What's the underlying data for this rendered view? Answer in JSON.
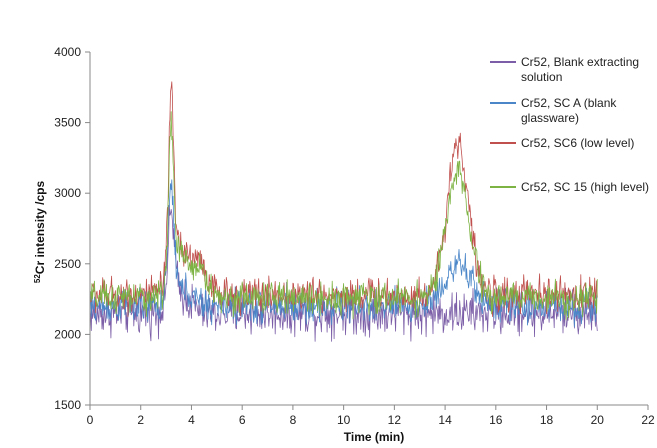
{
  "chart_data": {
    "type": "line",
    "ylabel_sup": "52",
    "ylabel_rest": "Cr intensity /cps",
    "xlabel": "Time (min)",
    "xlim": [
      0,
      22
    ],
    "ylim": [
      1500,
      4000
    ],
    "x_ticks": [
      "0",
      "2",
      "4",
      "6",
      "8",
      "10",
      "12",
      "14",
      "16",
      "18",
      "20",
      "22"
    ],
    "y_ticks": [
      "1500",
      "2000",
      "2500",
      "3000",
      "3500",
      "4000"
    ],
    "x_range": [
      0,
      20
    ],
    "legend_position": "right",
    "grid": false,
    "series": [
      {
        "name": "Cr52, Blank extracting solution",
        "legend_lines": [
          "Cr52, Blank extracting",
          "solution"
        ],
        "color": "#7b5ea7",
        "baseline": 2150,
        "noise": 75,
        "peaks": [
          {
            "x": 3.2,
            "height": 600,
            "width": 0.12
          },
          {
            "x": 3.5,
            "height": 150,
            "width": 0.4
          }
        ]
      },
      {
        "name": "Cr52, SC A (blank glassware)",
        "legend_lines": [
          "Cr52, SC A (blank",
          "glassware)"
        ],
        "color": "#4a86c8",
        "baseline": 2200,
        "noise": 60,
        "peaks": [
          {
            "x": 3.2,
            "height": 780,
            "width": 0.12
          },
          {
            "x": 3.6,
            "height": 120,
            "width": 0.4
          },
          {
            "x": 14.5,
            "height": 280,
            "width": 0.55
          }
        ]
      },
      {
        "name": "Cr52, SC6 (low level)",
        "legend_lines": [
          "Cr52, SC6 (low level)"
        ],
        "color": "#c0504d",
        "baseline": 2280,
        "noise": 60,
        "peaks": [
          {
            "x": 3.2,
            "height": 1180,
            "width": 0.1
          },
          {
            "x": 3.5,
            "height": 350,
            "width": 0.35
          },
          {
            "x": 4.3,
            "height": 230,
            "width": 0.3
          },
          {
            "x": 14.5,
            "height": 1080,
            "width": 0.42
          }
        ]
      },
      {
        "name": "Cr52, SC 15 (high level)",
        "legend_lines": [
          "Cr52, SC 15 (high level)"
        ],
        "color": "#7cb342",
        "baseline": 2260,
        "noise": 55,
        "peaks": [
          {
            "x": 3.2,
            "height": 1000,
            "width": 0.1
          },
          {
            "x": 3.5,
            "height": 300,
            "width": 0.35
          },
          {
            "x": 4.3,
            "height": 200,
            "width": 0.3
          },
          {
            "x": 14.5,
            "height": 880,
            "width": 0.45
          }
        ]
      }
    ]
  }
}
